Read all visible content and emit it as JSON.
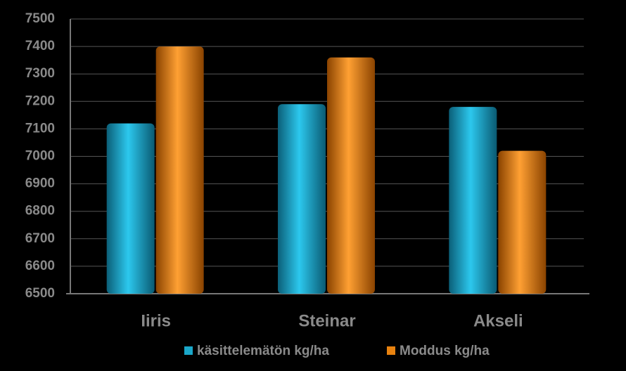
{
  "chart_data": {
    "type": "bar",
    "categories": [
      "Iiris",
      "Steinar",
      "Akseli"
    ],
    "series": [
      {
        "name": "käsittelemätön kg/ha",
        "color": "#1aa7c9",
        "values": [
          7120,
          7190,
          7180
        ]
      },
      {
        "name": "Moddus kg/ha",
        "color": "#e8820f",
        "values": [
          7400,
          7360,
          7020
        ]
      }
    ],
    "ylim": [
      6500,
      7500
    ],
    "yticks": [
      6500,
      6600,
      6700,
      6800,
      6900,
      7000,
      7100,
      7200,
      7300,
      7400,
      7500
    ],
    "grid": true
  }
}
